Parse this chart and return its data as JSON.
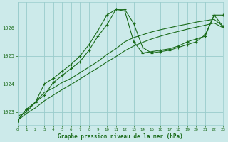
{
  "bg_color": "#cceaea",
  "grid_color": "#99cccc",
  "line_color": "#1a6b1a",
  "marker_color": "#1a6b1a",
  "title": "Graphe pression niveau de la mer (hPa)",
  "xlim": [
    0,
    23
  ],
  "ylim": [
    1022.55,
    1026.9
  ],
  "yticks": [
    1023,
    1024,
    1025,
    1026
  ],
  "xticks": [
    0,
    1,
    2,
    3,
    4,
    5,
    6,
    7,
    8,
    9,
    10,
    11,
    12,
    13,
    14,
    15,
    16,
    17,
    18,
    19,
    20,
    21,
    22,
    23
  ],
  "series_main_x": [
    0,
    1,
    2,
    3,
    4,
    5,
    6,
    7,
    8,
    9,
    10,
    11,
    12,
    13,
    14,
    15,
    16,
    17,
    18,
    19,
    20,
    21,
    22,
    23
  ],
  "series_main_y": [
    1022.7,
    1023.1,
    1023.35,
    1024.0,
    1024.2,
    1024.45,
    1024.7,
    1025.0,
    1025.4,
    1025.9,
    1026.45,
    1026.65,
    1026.6,
    1025.5,
    1025.1,
    1025.15,
    1025.2,
    1025.25,
    1025.35,
    1025.5,
    1025.6,
    1025.7,
    1026.45,
    1026.05
  ],
  "series_spike_x": [
    0,
    1,
    2,
    3,
    4,
    5,
    6,
    7,
    8,
    9,
    10,
    11,
    12,
    13,
    14,
    15,
    16,
    17,
    18,
    19,
    20,
    21,
    22,
    23
  ],
  "series_spike_y": [
    1022.7,
    1023.1,
    1023.35,
    1023.6,
    1024.05,
    1024.3,
    1024.55,
    1024.8,
    1025.2,
    1025.7,
    1026.1,
    1026.65,
    1026.65,
    1026.15,
    1025.3,
    1025.1,
    1025.15,
    1025.2,
    1025.3,
    1025.4,
    1025.5,
    1025.75,
    1026.45,
    1026.45
  ],
  "series_trend1_x": [
    0,
    1,
    2,
    3,
    4,
    5,
    6,
    7,
    8,
    9,
    10,
    11,
    12,
    13,
    14,
    15,
    16,
    17,
    18,
    19,
    20,
    21,
    22,
    23
  ],
  "series_trend1_y": [
    1022.85,
    1023.0,
    1023.35,
    1023.7,
    1023.85,
    1024.05,
    1024.2,
    1024.4,
    1024.6,
    1024.8,
    1025.05,
    1025.25,
    1025.5,
    1025.65,
    1025.75,
    1025.85,
    1025.93,
    1026.0,
    1026.07,
    1026.13,
    1026.2,
    1026.25,
    1026.3,
    1026.05
  ],
  "series_trend2_x": [
    0,
    1,
    2,
    3,
    4,
    5,
    6,
    7,
    8,
    9,
    10,
    11,
    12,
    13,
    14,
    15,
    16,
    17,
    18,
    19,
    20,
    21,
    22,
    23
  ],
  "series_trend2_y": [
    1022.7,
    1022.95,
    1023.15,
    1023.4,
    1023.6,
    1023.8,
    1023.98,
    1024.18,
    1024.38,
    1024.57,
    1024.78,
    1024.97,
    1025.18,
    1025.35,
    1025.48,
    1025.6,
    1025.7,
    1025.79,
    1025.87,
    1025.95,
    1026.02,
    1026.09,
    1026.17,
    1026.0
  ]
}
